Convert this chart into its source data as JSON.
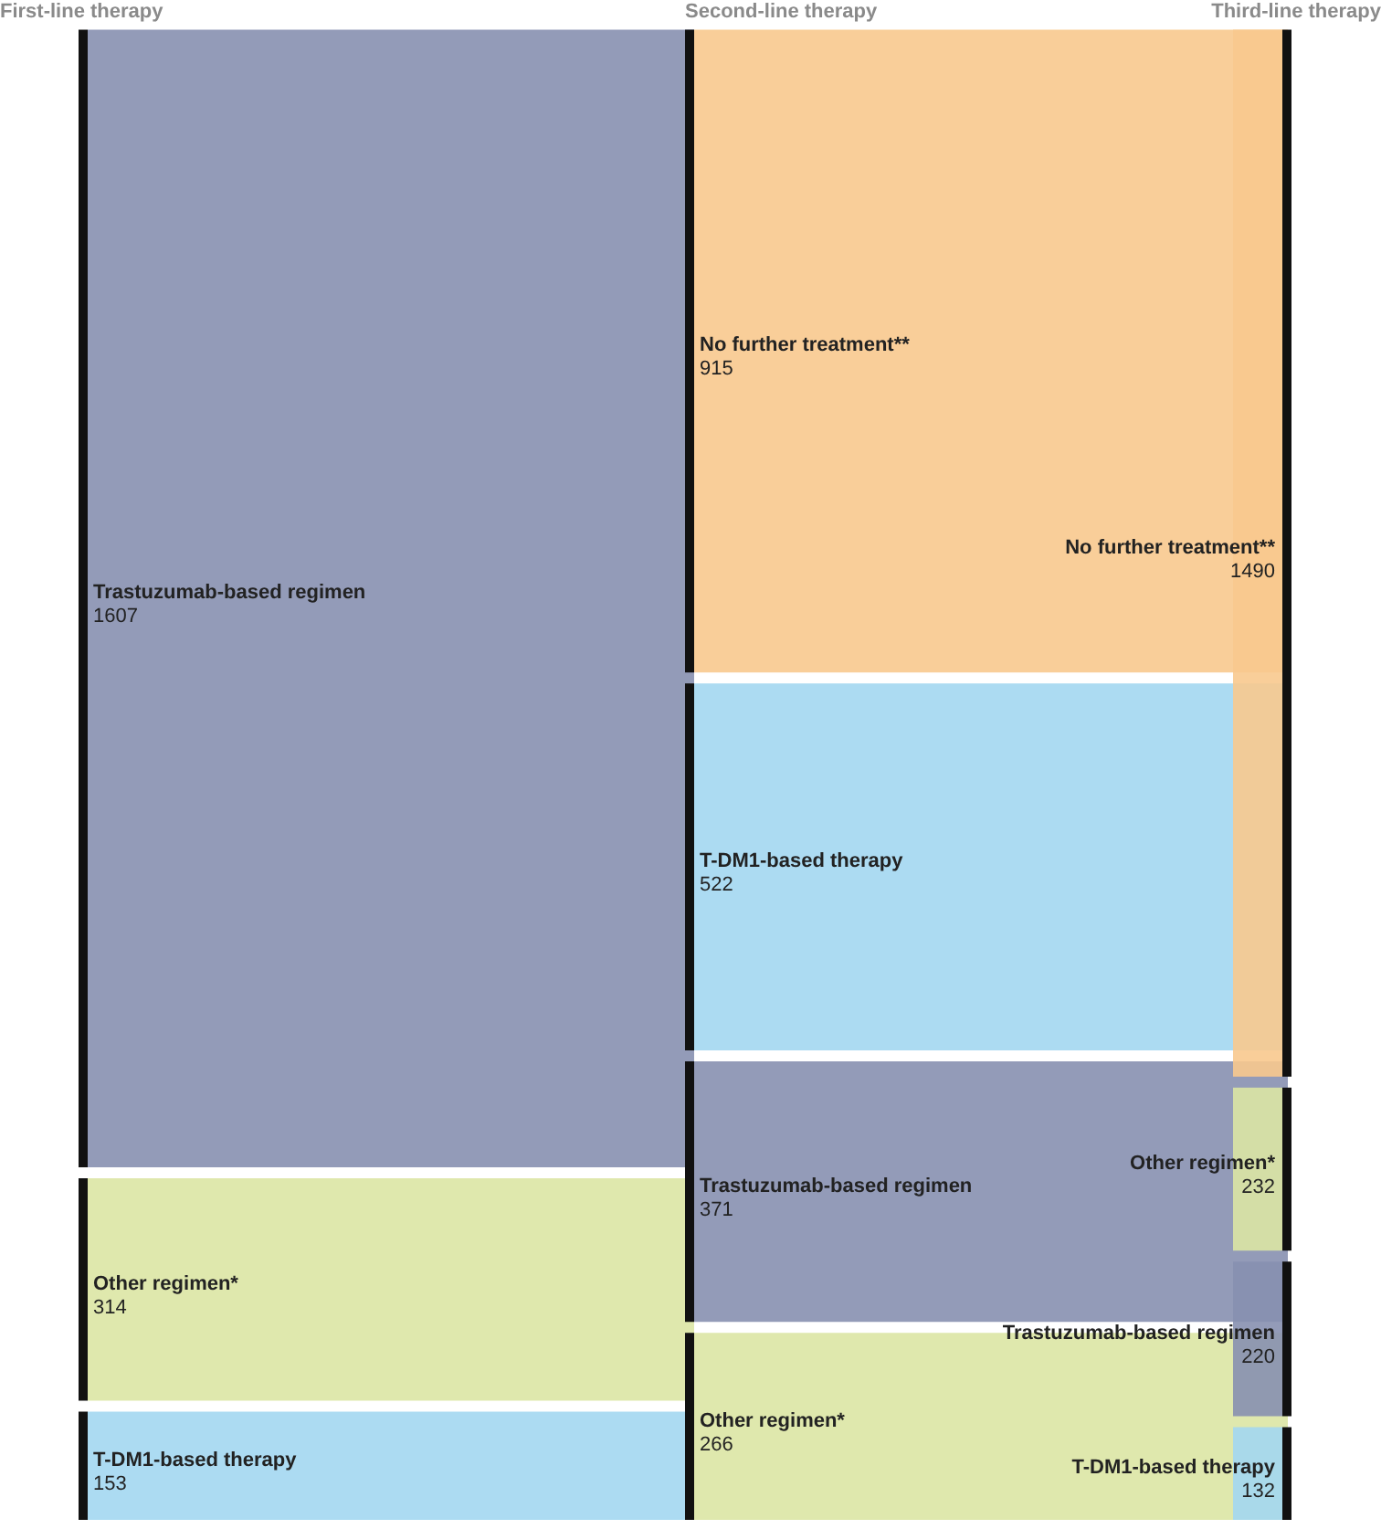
{
  "chart_data": [
    {
      "type": "other",
      "title": "First-line therapy",
      "categories": [
        "Trastuzumab-based regimen",
        "Other regimen*",
        "T-DM1-based therapy"
      ],
      "values": [
        1607,
        314,
        153
      ],
      "colors": [
        "#8790b0",
        "#dce6a4",
        "#a3d7f1"
      ],
      "data_labels": true
    },
    {
      "type": "other",
      "title": "Second-line therapy",
      "categories": [
        "No further treatment**",
        "T-DM1-based therapy",
        "Trastuzumab-based regimen",
        "Other regimen*"
      ],
      "values": [
        915,
        522,
        371,
        266
      ],
      "colors": [
        "#f8c98e",
        "#a3d7f1",
        "#8790b0",
        "#dce6a4"
      ],
      "data_labels": true
    },
    {
      "type": "other",
      "title": "Third-line therapy",
      "categories": [
        "No further treatment**",
        "Other regimen*",
        "Trastuzumab-based regimen",
        "T-DM1-based therapy"
      ],
      "values": [
        1490,
        232,
        220,
        132
      ],
      "colors": [
        "#f8c98e",
        "#dce6a4",
        "#8790b0",
        "#a3d7f1"
      ],
      "data_labels": true
    }
  ]
}
